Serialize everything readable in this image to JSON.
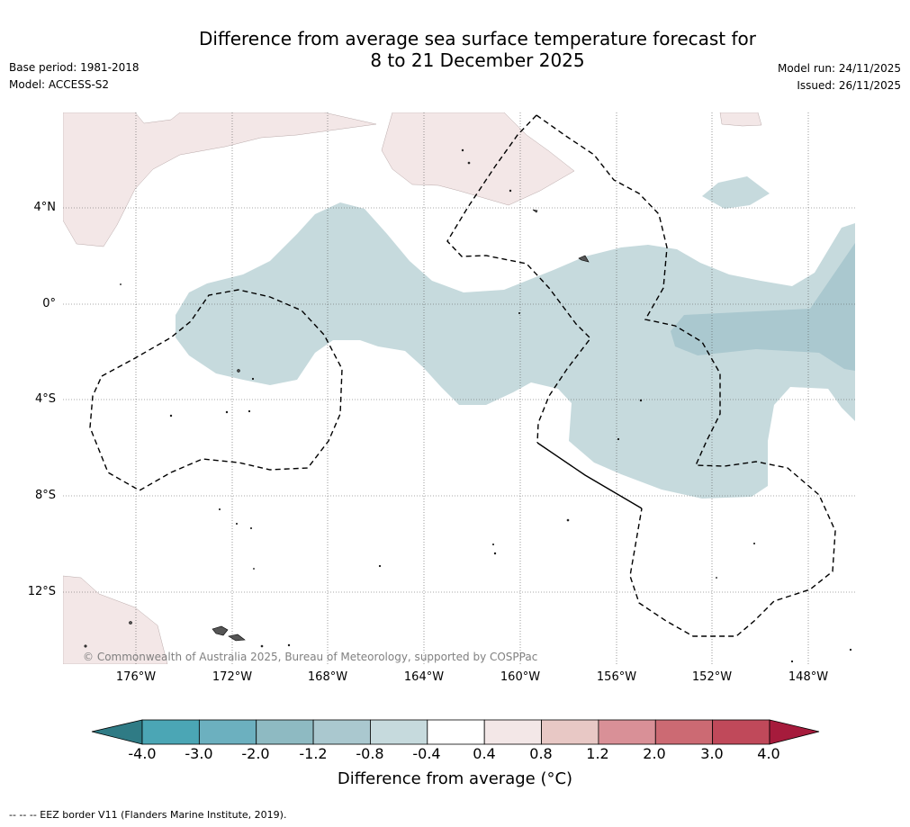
{
  "header": {
    "title_line1": "Difference from average sea surface temperature forecast for",
    "title_line2": "8 to 21 December 2025",
    "base_period": "Base period: 1981-2018",
    "model": "Model: ACCESS-S2",
    "model_run": "Model run: 24/11/2025",
    "issued": "Issued: 26/11/2025"
  },
  "map": {
    "lat_labels": [
      "4°N",
      "0°",
      "4°S",
      "8°S",
      "12°S"
    ],
    "lon_labels": [
      "176°W",
      "172°W",
      "168°W",
      "164°W",
      "160°W",
      "156°W",
      "152°W",
      "148°W"
    ],
    "copyright": "© Commonwealth of Australia 2025, Bureau of Meteorology, supported by COSPPac"
  },
  "colorbar": {
    "ticks": [
      "-4.0",
      "-3.0",
      "-2.0",
      "-1.2",
      "-0.8",
      "-0.4",
      "0.4",
      "0.8",
      "1.2",
      "2.0",
      "3.0",
      "4.0"
    ],
    "colors": {
      "below": "#2f7b85",
      "bins": [
        "#4ba6b5",
        "#6cb0bf",
        "#8ebac2",
        "#aac8cf",
        "#c6dadd",
        "#ffffff",
        "#f3e7e7",
        "#e8c8c5",
        "#d99097",
        "#cc6a73",
        "#c0495a"
      ],
      "above": "#a61b3c"
    },
    "title": "Difference from average (°C)"
  },
  "footer": {
    "legend_text": "--  --  -- EEZ border V11 (Flanders Marine Institute, 2019)."
  }
}
